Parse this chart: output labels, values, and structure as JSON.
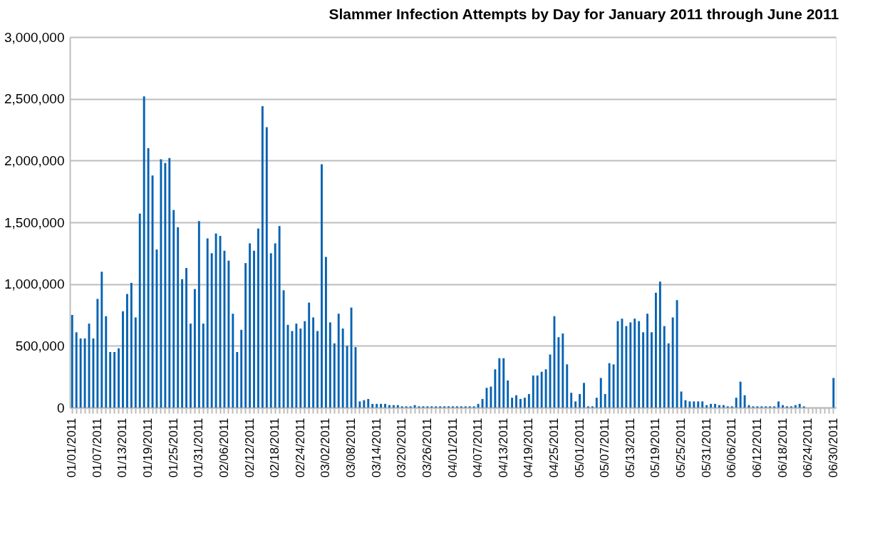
{
  "chart_data": {
    "type": "bar",
    "title": "Slammer Infection Attempts by Day for January 2011 through June 2011",
    "categories": [
      "01/01/2011",
      null,
      null,
      null,
      null,
      null,
      "01/07/2011",
      null,
      null,
      null,
      null,
      null,
      "01/13/2011",
      null,
      null,
      null,
      null,
      null,
      "01/19/2011",
      null,
      null,
      null,
      null,
      null,
      "01/25/2011",
      null,
      null,
      null,
      null,
      null,
      "01/31/2011",
      null,
      null,
      null,
      null,
      null,
      "02/06/2011",
      null,
      null,
      null,
      null,
      null,
      "02/12/2011",
      null,
      null,
      null,
      null,
      null,
      "02/18/2011",
      null,
      null,
      null,
      null,
      null,
      "02/24/2011",
      null,
      null,
      null,
      null,
      null,
      "03/02/2011",
      null,
      null,
      null,
      null,
      null,
      "03/08/2011",
      null,
      null,
      null,
      null,
      null,
      "03/14/2011",
      null,
      null,
      null,
      null,
      null,
      "03/20/2011",
      null,
      null,
      null,
      null,
      null,
      "03/26/2011",
      null,
      null,
      null,
      null,
      null,
      "04/01/2011",
      null,
      null,
      null,
      null,
      null,
      "04/07/2011",
      null,
      null,
      null,
      null,
      null,
      "04/13/2011",
      null,
      null,
      null,
      null,
      null,
      "04/19/2011",
      null,
      null,
      null,
      null,
      null,
      "04/25/2011",
      null,
      null,
      null,
      null,
      null,
      "05/01/2011",
      null,
      null,
      null,
      null,
      null,
      "05/07/2011",
      null,
      null,
      null,
      null,
      null,
      "05/13/2011",
      null,
      null,
      null,
      null,
      null,
      "05/19/2011",
      null,
      null,
      null,
      null,
      null,
      "05/25/2011",
      null,
      null,
      null,
      null,
      null,
      "05/31/2011",
      null,
      null,
      null,
      null,
      null,
      "06/06/2011",
      null,
      null,
      null,
      null,
      null,
      "06/12/2011",
      null,
      null,
      null,
      null,
      null,
      "06/18/2011",
      null,
      null,
      null,
      null,
      null,
      "06/24/2011",
      null,
      null,
      null,
      null,
      null,
      "06/30/2011"
    ],
    "values": [
      750000,
      610000,
      560000,
      560000,
      680000,
      560000,
      880000,
      1100000,
      740000,
      450000,
      450000,
      480000,
      780000,
      920000,
      1010000,
      730000,
      1570000,
      2520000,
      2100000,
      1880000,
      1280000,
      2010000,
      1980000,
      2020000,
      1600000,
      1460000,
      1040000,
      1130000,
      680000,
      960000,
      1510000,
      680000,
      1370000,
      1250000,
      1410000,
      1390000,
      1270000,
      1190000,
      760000,
      450000,
      630000,
      1170000,
      1330000,
      1270000,
      1450000,
      2440000,
      2270000,
      1250000,
      1330000,
      1470000,
      950000,
      670000,
      620000,
      680000,
      640000,
      700000,
      850000,
      730000,
      620000,
      1970000,
      1220000,
      690000,
      520000,
      760000,
      640000,
      500000,
      810000,
      490000,
      50000,
      60000,
      70000,
      30000,
      30000,
      30000,
      30000,
      20000,
      20000,
      20000,
      10000,
      10000,
      10000,
      20000,
      10000,
      10000,
      10000,
      10000,
      10000,
      10000,
      10000,
      10000,
      10000,
      10000,
      10000,
      10000,
      10000,
      10000,
      30000,
      70000,
      160000,
      170000,
      310000,
      400000,
      400000,
      220000,
      80000,
      100000,
      70000,
      80000,
      110000,
      260000,
      260000,
      290000,
      310000,
      430000,
      740000,
      570000,
      600000,
      350000,
      120000,
      50000,
      110000,
      200000,
      10000,
      10000,
      80000,
      240000,
      110000,
      360000,
      350000,
      700000,
      720000,
      660000,
      690000,
      720000,
      700000,
      610000,
      760000,
      610000,
      930000,
      1020000,
      660000,
      520000,
      730000,
      870000,
      130000,
      60000,
      50000,
      50000,
      50000,
      50000,
      20000,
      30000,
      30000,
      20000,
      20000,
      10000,
      10000,
      80000,
      210000,
      100000,
      20000,
      10000,
      10000,
      10000,
      10000,
      10000,
      10000,
      50000,
      20000,
      10000,
      10000,
      20000,
      30000,
      10000,
      0,
      0,
      0,
      0,
      0,
      0,
      240000
    ],
    "color": "#0563b3",
    "ylim": [
      0,
      3000000
    ],
    "yticks": [
      0,
      {
        "value": 500000,
        "label": "500,000"
      },
      {
        "value": 1000000,
        "label": "1,000,000"
      },
      {
        "value": 1500000,
        "label": "1,500,000"
      },
      {
        "value": 2000000,
        "label": "2,000,000"
      },
      {
        "value": 2500000,
        "label": "2,500,000"
      },
      {
        "value": 3000000,
        "label": "3,000,000"
      }
    ],
    "grid": "y"
  }
}
